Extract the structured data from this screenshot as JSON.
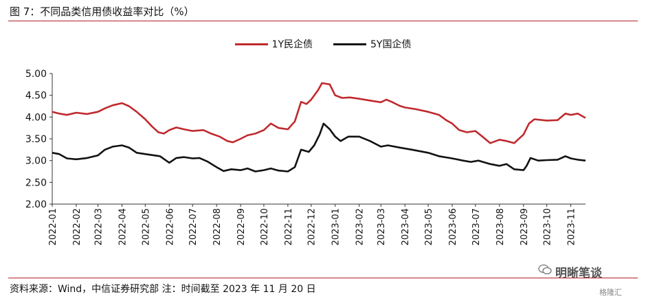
{
  "figure": {
    "title": "图 7：不同品类信用债收益率对比（%）",
    "source": "资料来源：Wind，中信证券研究部 注：时间截至 2023 年 11 月 20 日",
    "watermark": "明晰笔谈",
    "watermark2": "格隆汇"
  },
  "colors": {
    "series1": "#c0292d",
    "series2": "#111111",
    "axis": "#333333"
  },
  "chart_data": {
    "type": "line",
    "title": "",
    "xlabel": "",
    "ylabel": "",
    "ylim": [
      2.0,
      5.0
    ],
    "yticks": [
      "2.00",
      "2.50",
      "3.00",
      "3.50",
      "4.00",
      "4.50",
      "5.00"
    ],
    "xlim": [
      "2022-01-01",
      "2023-11-20"
    ],
    "xticks": [
      "2022-01",
      "2022-02",
      "2022-03",
      "2022-04",
      "2022-05",
      "2022-06",
      "2022-07",
      "2022-08",
      "2022-09",
      "2022-10",
      "2022-11",
      "2022-12",
      "2023-01",
      "2023-02",
      "2023-03",
      "2023-04",
      "2023-05",
      "2023-06",
      "2023-07",
      "2023-08",
      "2023-09",
      "2023-10",
      "2023-11"
    ],
    "legend_position": "top-center",
    "grid": false,
    "series": [
      {
        "name": "1Y民企债",
        "points": [
          [
            "2022-01-01",
            4.12
          ],
          [
            "2022-01-10",
            4.08
          ],
          [
            "2022-01-20",
            4.05
          ],
          [
            "2022-02-01",
            4.1
          ],
          [
            "2022-02-15",
            4.07
          ],
          [
            "2022-03-01",
            4.12
          ],
          [
            "2022-03-10",
            4.2
          ],
          [
            "2022-03-20",
            4.27
          ],
          [
            "2022-04-01",
            4.32
          ],
          [
            "2022-04-10",
            4.25
          ],
          [
            "2022-04-20",
            4.12
          ],
          [
            "2022-05-01",
            3.95
          ],
          [
            "2022-05-10",
            3.78
          ],
          [
            "2022-05-18",
            3.65
          ],
          [
            "2022-05-25",
            3.62
          ],
          [
            "2022-06-01",
            3.7
          ],
          [
            "2022-06-10",
            3.76
          ],
          [
            "2022-06-20",
            3.72
          ],
          [
            "2022-07-01",
            3.68
          ],
          [
            "2022-07-15",
            3.7
          ],
          [
            "2022-07-25",
            3.62
          ],
          [
            "2022-08-05",
            3.55
          ],
          [
            "2022-08-15",
            3.45
          ],
          [
            "2022-08-22",
            3.42
          ],
          [
            "2022-09-01",
            3.5
          ],
          [
            "2022-09-10",
            3.58
          ],
          [
            "2022-09-20",
            3.62
          ],
          [
            "2022-10-01",
            3.7
          ],
          [
            "2022-10-10",
            3.85
          ],
          [
            "2022-10-20",
            3.75
          ],
          [
            "2022-11-01",
            3.72
          ],
          [
            "2022-11-10",
            3.9
          ],
          [
            "2022-11-18",
            4.35
          ],
          [
            "2022-11-25",
            4.3
          ],
          [
            "2022-12-01",
            4.4
          ],
          [
            "2022-12-10",
            4.62
          ],
          [
            "2022-12-15",
            4.78
          ],
          [
            "2022-12-25",
            4.75
          ],
          [
            "2023-01-01",
            4.5
          ],
          [
            "2023-01-10",
            4.44
          ],
          [
            "2023-01-20",
            4.45
          ],
          [
            "2023-02-01",
            4.42
          ],
          [
            "2023-02-15",
            4.38
          ],
          [
            "2023-03-01",
            4.34
          ],
          [
            "2023-03-08",
            4.4
          ],
          [
            "2023-03-15",
            4.35
          ],
          [
            "2023-03-25",
            4.26
          ],
          [
            "2023-04-01",
            4.22
          ],
          [
            "2023-04-15",
            4.18
          ],
          [
            "2023-05-01",
            4.12
          ],
          [
            "2023-05-15",
            4.05
          ],
          [
            "2023-05-25",
            3.92
          ],
          [
            "2023-06-01",
            3.85
          ],
          [
            "2023-06-10",
            3.7
          ],
          [
            "2023-06-20",
            3.65
          ],
          [
            "2023-07-01",
            3.68
          ],
          [
            "2023-07-10",
            3.55
          ],
          [
            "2023-07-20",
            3.4
          ],
          [
            "2023-08-01",
            3.48
          ],
          [
            "2023-08-10",
            3.45
          ],
          [
            "2023-08-20",
            3.4
          ],
          [
            "2023-09-01",
            3.6
          ],
          [
            "2023-09-08",
            3.85
          ],
          [
            "2023-09-15",
            3.95
          ],
          [
            "2023-10-01",
            3.92
          ],
          [
            "2023-10-15",
            3.93
          ],
          [
            "2023-10-25",
            4.08
          ],
          [
            "2023-11-01",
            4.05
          ],
          [
            "2023-11-10",
            4.08
          ],
          [
            "2023-11-20",
            3.98
          ]
        ]
      },
      {
        "name": "5Y国企债",
        "points": [
          [
            "2022-01-01",
            3.18
          ],
          [
            "2022-01-10",
            3.15
          ],
          [
            "2022-01-20",
            3.05
          ],
          [
            "2022-02-01",
            3.03
          ],
          [
            "2022-02-15",
            3.06
          ],
          [
            "2022-03-01",
            3.12
          ],
          [
            "2022-03-10",
            3.25
          ],
          [
            "2022-03-20",
            3.32
          ],
          [
            "2022-04-01",
            3.35
          ],
          [
            "2022-04-10",
            3.3
          ],
          [
            "2022-04-20",
            3.18
          ],
          [
            "2022-05-01",
            3.15
          ],
          [
            "2022-05-20",
            3.1
          ],
          [
            "2022-06-01",
            2.95
          ],
          [
            "2022-06-10",
            3.06
          ],
          [
            "2022-06-20",
            3.08
          ],
          [
            "2022-07-01",
            3.05
          ],
          [
            "2022-07-10",
            3.06
          ],
          [
            "2022-07-20",
            2.98
          ],
          [
            "2022-08-01",
            2.85
          ],
          [
            "2022-08-10",
            2.76
          ],
          [
            "2022-08-20",
            2.8
          ],
          [
            "2022-09-01",
            2.78
          ],
          [
            "2022-09-10",
            2.82
          ],
          [
            "2022-09-20",
            2.75
          ],
          [
            "2022-10-01",
            2.78
          ],
          [
            "2022-10-10",
            2.82
          ],
          [
            "2022-10-20",
            2.77
          ],
          [
            "2022-11-01",
            2.75
          ],
          [
            "2022-11-10",
            2.85
          ],
          [
            "2022-11-18",
            3.25
          ],
          [
            "2022-11-28",
            3.2
          ],
          [
            "2022-12-05",
            3.35
          ],
          [
            "2022-12-12",
            3.6
          ],
          [
            "2022-12-17",
            3.85
          ],
          [
            "2022-12-25",
            3.72
          ],
          [
            "2023-01-01",
            3.55
          ],
          [
            "2023-01-08",
            3.45
          ],
          [
            "2023-01-18",
            3.55
          ],
          [
            "2023-02-01",
            3.55
          ],
          [
            "2023-02-15",
            3.45
          ],
          [
            "2023-03-01",
            3.32
          ],
          [
            "2023-03-10",
            3.35
          ],
          [
            "2023-03-25",
            3.3
          ],
          [
            "2023-04-10",
            3.25
          ],
          [
            "2023-05-01",
            3.18
          ],
          [
            "2023-05-15",
            3.1
          ],
          [
            "2023-06-01",
            3.05
          ],
          [
            "2023-06-15",
            3.0
          ],
          [
            "2023-06-25",
            2.97
          ],
          [
            "2023-07-05",
            3.0
          ],
          [
            "2023-07-20",
            2.92
          ],
          [
            "2023-08-01",
            2.88
          ],
          [
            "2023-08-10",
            2.92
          ],
          [
            "2023-08-20",
            2.8
          ],
          [
            "2023-09-01",
            2.78
          ],
          [
            "2023-09-05",
            2.88
          ],
          [
            "2023-09-10",
            3.06
          ],
          [
            "2023-09-20",
            3.0
          ],
          [
            "2023-10-01",
            3.01
          ],
          [
            "2023-10-15",
            3.02
          ],
          [
            "2023-10-25",
            3.1
          ],
          [
            "2023-11-01",
            3.05
          ],
          [
            "2023-11-10",
            3.02
          ],
          [
            "2023-11-20",
            3.0
          ]
        ]
      }
    ]
  }
}
